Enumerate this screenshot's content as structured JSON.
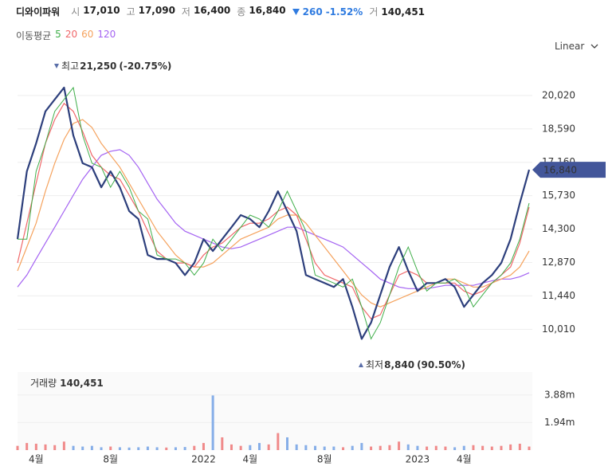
{
  "chart_data": {
    "type": "line",
    "title": "디와이파워",
    "quote": [
      {
        "label": "시",
        "value": "17,010"
      },
      {
        "label": "고",
        "value": "17,090"
      },
      {
        "label": "저",
        "value": "16,400"
      },
      {
        "label": "종",
        "value": "16,840"
      }
    ],
    "change": "260",
    "change_pct": "-1.52%",
    "volume_label": "거",
    "volume_value": "140,451",
    "ma_title": "이동평균",
    "scale": "Linear",
    "categories": [
      null,
      null,
      "4월",
      null,
      null,
      null,
      null,
      null,
      null,
      null,
      "8월",
      null,
      null,
      null,
      null,
      null,
      null,
      null,
      null,
      null,
      "2022",
      null,
      null,
      null,
      null,
      "4월",
      null,
      null,
      null,
      null,
      null,
      null,
      null,
      "8월",
      null,
      null,
      null,
      null,
      null,
      null,
      null,
      null,
      null,
      "2023",
      null,
      null,
      null,
      null,
      "4월",
      null,
      null,
      null,
      null,
      null,
      null,
      null
    ],
    "price": {
      "color": "#2d3f7c",
      "values": [
        13870,
        16770,
        17970,
        19340,
        19850,
        20360,
        18310,
        17120,
        16950,
        16090,
        16770,
        16090,
        15070,
        14730,
        13190,
        13020,
        13020,
        12850,
        12330,
        12850,
        13870,
        13360,
        13870,
        14380,
        14900,
        14730,
        14380,
        15070,
        15920,
        15070,
        14210,
        12330,
        12160,
        11990,
        11820,
        12160,
        10970,
        9600,
        10290,
        11480,
        12680,
        13530,
        12510,
        11650,
        11990,
        11990,
        12160,
        11820,
        10970,
        11480,
        11990,
        12330,
        12850,
        13870,
        15410,
        16840
      ]
    },
    "series": [
      {
        "name": "5",
        "color": "#3fae49",
        "values": [
          13870,
          13870,
          16770,
          17970,
          19340,
          19850,
          20360,
          18310,
          17120,
          16950,
          16090,
          16770,
          16090,
          15070,
          14730,
          13190,
          13020,
          13020,
          12850,
          12330,
          12850,
          13870,
          13360,
          13870,
          14380,
          14900,
          14730,
          14380,
          15070,
          15920,
          15070,
          14210,
          12330,
          12160,
          11990,
          11820,
          12160,
          10970,
          9600,
          10290,
          11480,
          12680,
          13530,
          12510,
          11650,
          11990,
          11990,
          12160,
          11820,
          10970,
          11480,
          11990,
          12330,
          12850,
          13870,
          15410
        ]
      },
      {
        "name": "20",
        "color": "#f0686a",
        "values": [
          12850,
          14550,
          16260,
          17970,
          18990,
          19680,
          19340,
          18480,
          17460,
          16950,
          16600,
          16430,
          15750,
          15070,
          14210,
          13360,
          13020,
          12850,
          12850,
          12680,
          13190,
          13530,
          13700,
          14040,
          14380,
          14550,
          14550,
          14730,
          15070,
          15240,
          14900,
          13870,
          12850,
          12330,
          12160,
          11990,
          11820,
          10970,
          10460,
          10630,
          11480,
          12330,
          12510,
          12330,
          11990,
          11990,
          11990,
          11990,
          11650,
          11480,
          11650,
          11990,
          12330,
          12680,
          13700,
          15240
        ]
      },
      {
        "name": "60",
        "color": "#f5a25d",
        "values": [
          12510,
          13530,
          14550,
          15920,
          17120,
          18140,
          18820,
          18990,
          18650,
          17970,
          17460,
          16950,
          16260,
          15580,
          14900,
          14210,
          13700,
          13190,
          12850,
          12680,
          12680,
          12850,
          13190,
          13530,
          13870,
          14040,
          14210,
          14380,
          14730,
          14900,
          14900,
          14550,
          14040,
          13530,
          13020,
          12510,
          11990,
          11480,
          11140,
          10970,
          11140,
          11310,
          11480,
          11650,
          11820,
          11990,
          12160,
          12160,
          11990,
          11820,
          11820,
          11990,
          12160,
          12330,
          12680,
          13360
        ]
      },
      {
        "name": "120",
        "color": "#a463f2",
        "values": [
          11820,
          12330,
          13020,
          13700,
          14380,
          15070,
          15750,
          16430,
          16950,
          17460,
          17630,
          17700,
          17460,
          16950,
          16260,
          15580,
          15070,
          14550,
          14210,
          14040,
          13870,
          13700,
          13530,
          13460,
          13530,
          13700,
          13870,
          14040,
          14210,
          14380,
          14380,
          14210,
          14040,
          13870,
          13700,
          13530,
          13190,
          12850,
          12510,
          12160,
          11990,
          11820,
          11750,
          11750,
          11750,
          11820,
          11890,
          11890,
          11890,
          11890,
          11990,
          12090,
          12160,
          12160,
          12260,
          12430
        ]
      }
    ],
    "ylim": [
      8350,
      21550
    ],
    "yticks": [
      {
        "value": 10010,
        "label": "10,010"
      },
      {
        "value": 11440,
        "label": "11,440"
      },
      {
        "value": 12870,
        "label": "12,870"
      },
      {
        "value": 14300,
        "label": "14,300"
      },
      {
        "value": 15730,
        "label": "15,730"
      },
      {
        "value": 17160,
        "label": "17,160"
      },
      {
        "value": 18590,
        "label": "18,590"
      },
      {
        "value": 20020,
        "label": "20,020"
      }
    ],
    "grid": true,
    "last_price": {
      "value": 16840,
      "label": "16,840",
      "color": "#43569a"
    },
    "annotations": [
      {
        "text": "최고",
        "value": "21,250",
        "pct": "(-20.75%)"
      },
      {
        "text": "최저",
        "value": "8,840",
        "pct": "(90.50%)"
      }
    ],
    "volume": {
      "title": "거래량",
      "value_label": "140,451",
      "up_color": "#f08a8a",
      "down_color": "#86aee8",
      "values": [
        300000,
        500000,
        450000,
        400000,
        350000,
        600000,
        300000,
        250000,
        300000,
        200000,
        250000,
        200000,
        180000,
        200000,
        250000,
        200000,
        180000,
        200000,
        220000,
        300000,
        500000,
        3850000,
        900000,
        400000,
        300000,
        350000,
        500000,
        400000,
        1200000,
        900000,
        400000,
        350000,
        300000,
        250000,
        250000,
        200000,
        300000,
        500000,
        250000,
        300000,
        350000,
        600000,
        400000,
        300000,
        250000,
        300000,
        250000,
        200000,
        300000,
        350000,
        300000,
        250000,
        300000,
        400000,
        450000,
        250000
      ],
      "ylim": [
        0,
        5500000
      ],
      "yticks": [
        {
          "value": 1940000,
          "label": "1.94m"
        },
        {
          "value": 3880000,
          "label": "3.88m"
        }
      ]
    }
  }
}
